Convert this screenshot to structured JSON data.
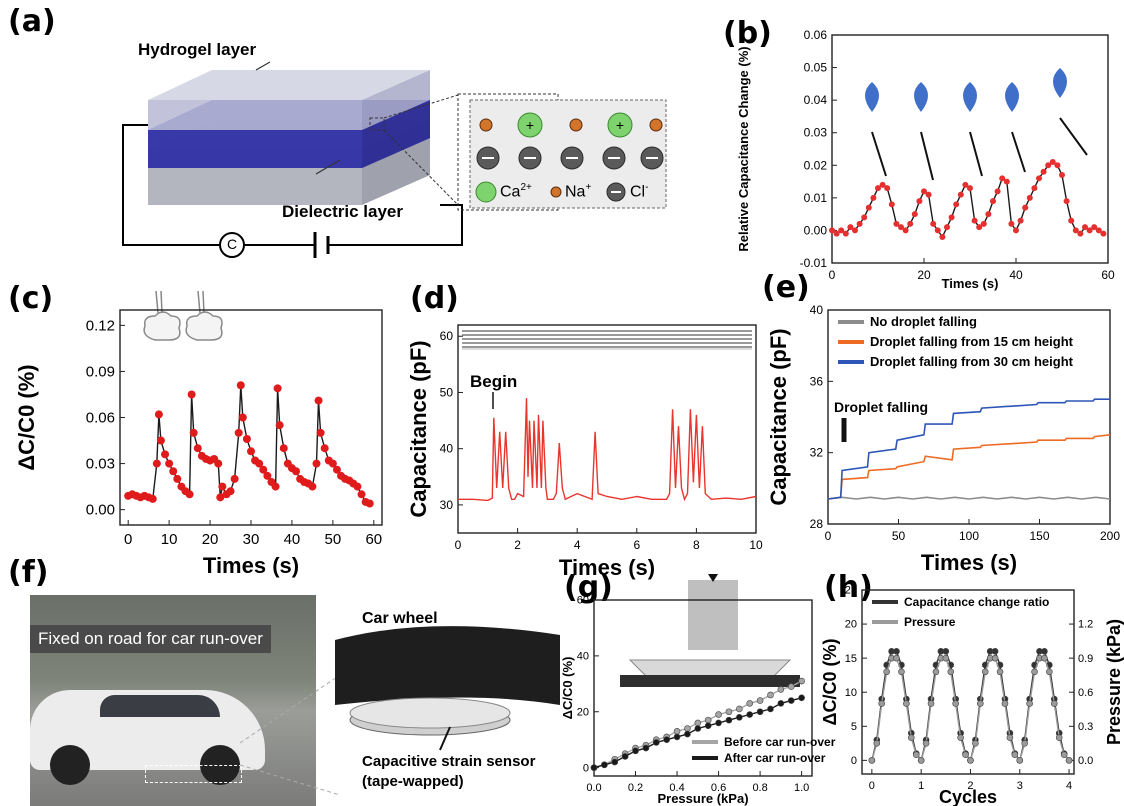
{
  "panels": {
    "a": {
      "label": "(a)",
      "hydrogel": "Hydrogel layer",
      "dielectric": "Dielectric layer",
      "meter": "C",
      "legend": {
        "ca": "Ca",
        "ca_sup": "2+",
        "na": "Na",
        "na_sup": "+",
        "cl": "Cl",
        "cl_sup": "-"
      }
    },
    "f": {
      "label": "(f)",
      "banner": "Fixed on road for car run-over",
      "car_wheel": "Car wheel",
      "sensor_line1": "Capacitive strain sensor",
      "sensor_line2": "(tape-wapped)"
    }
  },
  "chart_data": [
    {
      "id": "b",
      "label": "(b)",
      "type": "line",
      "xlabel": "Times (s)",
      "ylabel": "Relative Capacitance Change (%)",
      "xlim": [
        0,
        60
      ],
      "ylim": [
        -0.01,
        0.06
      ],
      "xticks": [
        0,
        20,
        40,
        60
      ],
      "yticks": [
        -0.01,
        0.0,
        0.01,
        0.02,
        0.03,
        0.04,
        0.05,
        0.06
      ],
      "colors": {
        "line": "#1a1a1a",
        "marker": "#e53030"
      },
      "series": [
        {
          "x": [
            0,
            1,
            2,
            3,
            4,
            5,
            6,
            7,
            8,
            9,
            10,
            11,
            12,
            13,
            14,
            15,
            16,
            17,
            18,
            19,
            20,
            21,
            22,
            23,
            24,
            25,
            26,
            27,
            28,
            29,
            30,
            31,
            32,
            33,
            34,
            35,
            36,
            37,
            38,
            39,
            40,
            41,
            42,
            43,
            44,
            45,
            46,
            47,
            48,
            49,
            50,
            51,
            52,
            53,
            54,
            55,
            56,
            57,
            58,
            59
          ],
          "y": [
            0.0,
            -0.001,
            0.0,
            -0.001,
            0.001,
            0.0,
            0.002,
            0.004,
            0.007,
            0.01,
            0.013,
            0.014,
            0.013,
            0.008,
            0.002,
            0.001,
            0.0,
            0.002,
            0.005,
            0.009,
            0.012,
            0.011,
            0.002,
            0.0,
            -0.002,
            0.001,
            0.004,
            0.008,
            0.011,
            0.014,
            0.013,
            0.003,
            0.001,
            0.002,
            0.005,
            0.009,
            0.012,
            0.016,
            0.015,
            0.002,
            0.0,
            0.003,
            0.007,
            0.01,
            0.013,
            0.016,
            0.018,
            0.02,
            0.021,
            0.02,
            0.017,
            0.009,
            0.003,
            0.0,
            -0.001,
            0.001,
            0.0,
            0.001,
            0.0,
            -0.001
          ]
        }
      ]
    },
    {
      "id": "c",
      "label": "(c)",
      "type": "line",
      "xlabel": "Times (s)",
      "ylabel": "ΔC/C0 (%)",
      "xlim": [
        -2,
        62
      ],
      "ylim": [
        -0.01,
        0.13
      ],
      "xticks": [
        0,
        10,
        20,
        30,
        40,
        50,
        60
      ],
      "yticks": [
        0.0,
        0.03,
        0.06,
        0.09,
        0.12
      ],
      "ytick_labels": [
        "0.00",
        "0.03",
        "0.06",
        "0.09",
        "0.12"
      ],
      "colors": {
        "line": "#1a1a1a",
        "marker": "#e01b1b"
      },
      "series": [
        {
          "x": [
            0,
            1,
            2,
            3,
            4,
            5,
            6,
            7,
            7.5,
            8,
            9,
            10,
            11,
            12,
            13,
            14,
            15,
            15.5,
            16,
            17,
            18,
            19,
            20,
            21,
            22,
            22.5,
            23,
            24,
            25,
            26,
            27,
            27.5,
            28,
            29,
            30,
            31,
            32,
            33,
            34,
            35,
            36,
            36.5,
            37,
            38,
            39,
            40,
            41,
            42,
            43,
            44,
            45,
            46,
            46.5,
            47,
            48,
            49,
            50,
            51,
            52,
            53,
            54,
            55,
            56,
            57,
            58,
            59
          ],
          "y": [
            0.009,
            0.01,
            0.009,
            0.008,
            0.009,
            0.008,
            0.007,
            0.03,
            0.062,
            0.045,
            0.036,
            0.03,
            0.025,
            0.02,
            0.015,
            0.012,
            0.01,
            0.075,
            0.05,
            0.04,
            0.035,
            0.033,
            0.032,
            0.033,
            0.03,
            0.008,
            0.015,
            0.01,
            0.012,
            0.02,
            0.05,
            0.081,
            0.06,
            0.046,
            0.038,
            0.032,
            0.03,
            0.026,
            0.022,
            0.018,
            0.015,
            0.079,
            0.055,
            0.04,
            0.03,
            0.027,
            0.025,
            0.02,
            0.018,
            0.017,
            0.015,
            0.03,
            0.071,
            0.05,
            0.04,
            0.032,
            0.03,
            0.026,
            0.022,
            0.02,
            0.019,
            0.017,
            0.015,
            0.01,
            0.005,
            0.004
          ]
        }
      ]
    },
    {
      "id": "d",
      "label": "(d)",
      "type": "line",
      "xlabel": "Times (s)",
      "ylabel": "Capacitance (pF)",
      "xlim": [
        0,
        10
      ],
      "ylim": [
        25,
        62
      ],
      "xticks": [
        0,
        2,
        4,
        6,
        8,
        10
      ],
      "yticks": [
        30,
        40,
        50,
        60
      ],
      "annotation": "Begin",
      "colors": {
        "line": "#e8352e"
      },
      "series": [
        {
          "x": [
            0,
            0.5,
            1,
            1.15,
            1.2,
            1.3,
            1.4,
            1.5,
            1.6,
            1.7,
            1.8,
            1.9,
            2.0,
            2.2,
            2.3,
            2.35,
            2.4,
            2.5,
            2.55,
            2.65,
            2.7,
            2.8,
            2.85,
            2.95,
            3.0,
            3.2,
            3.3,
            3.4,
            3.5,
            3.6,
            4,
            4.5,
            4.6,
            4.7,
            5,
            5.5,
            6,
            6.5,
            7,
            7.1,
            7.2,
            7.3,
            7.4,
            7.5,
            7.6,
            7.7,
            7.8,
            7.9,
            8.0,
            8.1,
            8.2,
            8.3,
            8.5,
            9,
            9.5,
            10
          ],
          "y": [
            31,
            31,
            30.8,
            31.2,
            45.5,
            33,
            43,
            33,
            43,
            33,
            31,
            31,
            32,
            31.5,
            49,
            35,
            45,
            33,
            45,
            33,
            46,
            33,
            45,
            33,
            31,
            31,
            32,
            41,
            33,
            31,
            32,
            31,
            43,
            32,
            31.5,
            31,
            31.5,
            31,
            31,
            32,
            47,
            33,
            44,
            33,
            31,
            32,
            47,
            34,
            46,
            33,
            44,
            32,
            31,
            31.2,
            31,
            31.5
          ]
        }
      ]
    },
    {
      "id": "e",
      "label": "(e)",
      "type": "line",
      "xlabel": "Times (s)",
      "ylabel": "Capacitance (pF)",
      "xlim": [
        0,
        200
      ],
      "ylim": [
        28,
        40
      ],
      "xticks": [
        0,
        50,
        100,
        150,
        200
      ],
      "yticks": [
        28,
        32,
        36,
        40
      ],
      "annotation": "Droplet falling",
      "legend_position": "top",
      "series": [
        {
          "name": "No droplet falling",
          "color": "#8c8c8c",
          "x": [
            0,
            10,
            20,
            30,
            40,
            50,
            60,
            70,
            80,
            90,
            100,
            110,
            120,
            130,
            140,
            150,
            160,
            170,
            180,
            190,
            200
          ],
          "y": [
            29.4,
            29.5,
            29.4,
            29.5,
            29.4,
            29.5,
            29.4,
            29.5,
            29.4,
            29.5,
            29.4,
            29.5,
            29.4,
            29.5,
            29.4,
            29.5,
            29.4,
            29.5,
            29.4,
            29.5,
            29.4
          ]
        },
        {
          "name": "Droplet falling from 15 cm height",
          "color": "#ee6b23",
          "x": [
            0,
            9,
            10,
            28,
            29,
            48,
            49,
            68,
            69,
            88,
            89,
            108,
            109,
            128,
            129,
            148,
            149,
            168,
            169,
            188,
            189,
            200
          ],
          "y": [
            29.4,
            29.5,
            30.5,
            30.6,
            31.0,
            31.1,
            31.2,
            31.5,
            31.8,
            31.6,
            32.2,
            32.3,
            32.4,
            32.5,
            32.5,
            32.6,
            32.7,
            32.7,
            32.8,
            32.8,
            32.9,
            33.0
          ]
        },
        {
          "name": "Droplet falling from 30 cm height",
          "color": "#2e56b8",
          "x": [
            0,
            9,
            10,
            28,
            29,
            48,
            49,
            68,
            69,
            88,
            89,
            108,
            109,
            128,
            129,
            148,
            149,
            168,
            169,
            188,
            189,
            200
          ],
          "y": [
            29.4,
            29.5,
            31.0,
            31.2,
            32.0,
            32.2,
            32.7,
            33.0,
            33.6,
            33.6,
            34.2,
            34.3,
            34.5,
            34.6,
            34.6,
            34.7,
            34.8,
            34.8,
            34.9,
            34.9,
            35.0,
            35.0
          ]
        }
      ]
    },
    {
      "id": "g",
      "label": "(g)",
      "type": "line",
      "xlabel": "Pressure (kPa)",
      "ylabel": "ΔC/C0 (%)",
      "xlim": [
        0,
        1.05
      ],
      "ylim": [
        -3,
        60
      ],
      "xticks": [
        0.0,
        0.2,
        0.4,
        0.6,
        0.8,
        1.0
      ],
      "yticks": [
        0,
        20,
        40,
        60
      ],
      "xtick_labels": [
        "0.0",
        "0.2",
        "0.4",
        "0.6",
        "0.8",
        "1.0"
      ],
      "legend_position": "bottom-right",
      "series": [
        {
          "name": "Before car run-over",
          "color": "#a5a5a5",
          "x": [
            0,
            0.05,
            0.1,
            0.15,
            0.2,
            0.25,
            0.3,
            0.35,
            0.4,
            0.45,
            0.5,
            0.55,
            0.6,
            0.65,
            0.7,
            0.75,
            0.8,
            0.85,
            0.9,
            0.95,
            1.0
          ],
          "y": [
            0,
            1,
            3,
            5,
            7,
            8,
            10,
            11,
            13,
            14,
            16,
            17,
            19,
            20,
            21,
            23,
            24,
            26,
            28,
            29,
            31
          ]
        },
        {
          "name": "After car run-over",
          "color": "#1a1a1a",
          "x": [
            0,
            0.05,
            0.1,
            0.15,
            0.2,
            0.25,
            0.3,
            0.35,
            0.4,
            0.45,
            0.5,
            0.55,
            0.6,
            0.65,
            0.7,
            0.75,
            0.8,
            0.85,
            0.9,
            0.95,
            1.0
          ],
          "y": [
            0,
            1,
            2,
            4,
            6,
            7,
            9,
            10,
            11,
            12,
            14,
            15,
            16,
            17,
            18,
            19,
            20,
            21,
            23,
            24,
            25
          ]
        }
      ]
    },
    {
      "id": "h",
      "label": "(h)",
      "type": "line",
      "xlabel": "Cycles",
      "ylabel": "ΔC/C0 (%)",
      "y2label": "Pressure (kPa)",
      "xlim": [
        -0.2,
        4.1
      ],
      "ylim": [
        -2,
        25
      ],
      "y2lim": [
        -0.12,
        1.5
      ],
      "xticks": [
        0,
        1,
        2,
        3,
        4
      ],
      "yticks": [
        0,
        5,
        10,
        15,
        20,
        25
      ],
      "y2ticks": [
        0.0,
        0.3,
        0.6,
        0.9,
        1.2
      ],
      "y2tick_labels": [
        "0.0",
        "0.3",
        "0.6",
        "0.9",
        "1.2"
      ],
      "legend_position": "top",
      "series": [
        {
          "name": "Capacitance change ratio",
          "color": "#333333",
          "axis": "left",
          "x": [
            0,
            0.1,
            0.2,
            0.3,
            0.4,
            0.5,
            0.6,
            0.7,
            0.8,
            0.9,
            1.0,
            1.1,
            1.2,
            1.3,
            1.4,
            1.5,
            1.6,
            1.7,
            1.8,
            1.9,
            2.0,
            2.1,
            2.2,
            2.3,
            2.4,
            2.5,
            2.6,
            2.7,
            2.8,
            2.9,
            3.0,
            3.1,
            3.2,
            3.3,
            3.4,
            3.5,
            3.6,
            3.7,
            3.8,
            3.9,
            4.0
          ],
          "y": [
            0,
            3,
            9,
            14,
            16,
            16,
            14,
            9,
            4,
            1,
            0,
            3,
            9,
            14,
            16,
            16,
            14,
            9,
            4,
            1,
            0,
            3,
            9,
            14,
            16,
            16,
            14,
            9,
            4,
            1,
            0,
            3,
            9,
            14,
            16,
            16,
            14,
            9,
            4,
            1,
            0
          ]
        },
        {
          "name": "Pressure",
          "color": "#9a9a9a",
          "axis": "right",
          "x": [
            0,
            0.1,
            0.2,
            0.3,
            0.4,
            0.5,
            0.6,
            0.7,
            0.8,
            0.9,
            1.0,
            1.1,
            1.2,
            1.3,
            1.4,
            1.5,
            1.6,
            1.7,
            1.8,
            1.9,
            2.0,
            2.1,
            2.2,
            2.3,
            2.4,
            2.5,
            2.6,
            2.7,
            2.8,
            2.9,
            3.0,
            3.1,
            3.2,
            3.3,
            3.4,
            3.5,
            3.6,
            3.7,
            3.8,
            3.9,
            4.0
          ],
          "y": [
            0,
            0.15,
            0.5,
            0.78,
            0.9,
            0.9,
            0.78,
            0.5,
            0.2,
            0.05,
            0,
            0.15,
            0.5,
            0.78,
            0.9,
            0.9,
            0.78,
            0.5,
            0.2,
            0.05,
            0,
            0.15,
            0.5,
            0.78,
            0.9,
            0.9,
            0.78,
            0.5,
            0.2,
            0.05,
            0,
            0.15,
            0.5,
            0.78,
            0.9,
            0.9,
            0.78,
            0.5,
            0.2,
            0.05,
            0
          ]
        }
      ]
    }
  ]
}
